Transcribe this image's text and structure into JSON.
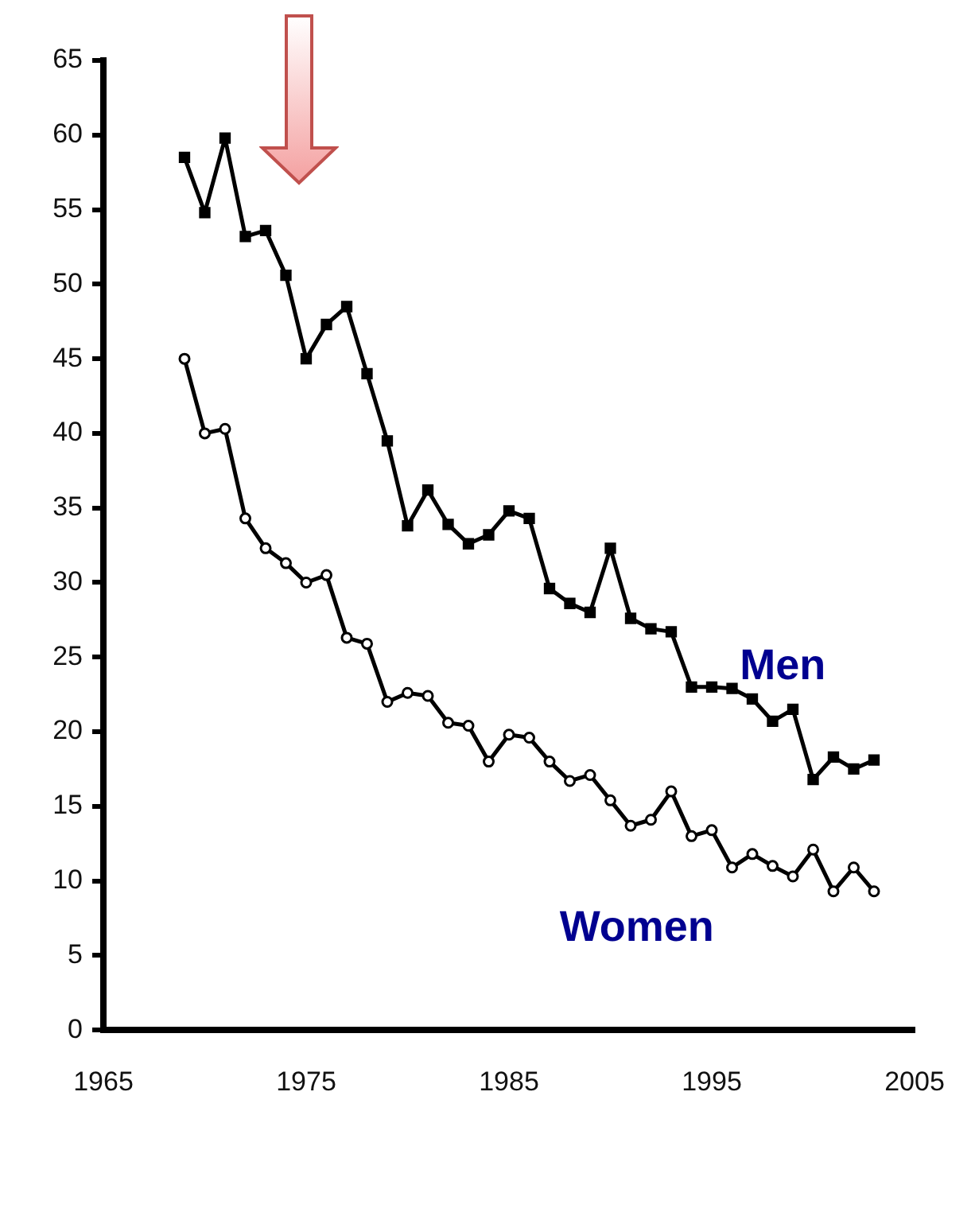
{
  "chart_data": {
    "type": "line",
    "x": [
      1969,
      1970,
      1971,
      1972,
      1973,
      1974,
      1975,
      1976,
      1977,
      1978,
      1979,
      1980,
      1981,
      1982,
      1983,
      1984,
      1985,
      1986,
      1987,
      1988,
      1989,
      1990,
      1991,
      1992,
      1993,
      1994,
      1995,
      1996,
      1997,
      1998,
      1999,
      2000,
      2001,
      2002,
      2003
    ],
    "series": [
      {
        "name": "Men",
        "color": "#000000",
        "marker": "square",
        "values": [
          58.5,
          54.8,
          59.8,
          53.2,
          53.6,
          50.6,
          45.0,
          47.3,
          48.5,
          44.0,
          39.5,
          33.8,
          36.2,
          33.9,
          32.6,
          33.2,
          34.8,
          34.3,
          29.6,
          28.6,
          28.0,
          32.3,
          27.6,
          26.9,
          26.7,
          23.0,
          23.0,
          22.9,
          22.2,
          20.7,
          21.5,
          16.8,
          18.3,
          17.5,
          18.1
        ]
      },
      {
        "name": "Women",
        "color": "#000000",
        "marker": "circle",
        "values": [
          45.0,
          40.0,
          40.3,
          34.3,
          32.3,
          31.3,
          30.0,
          30.5,
          26.3,
          25.9,
          22.0,
          22.6,
          22.4,
          20.6,
          20.4,
          18.0,
          19.8,
          19.6,
          18.0,
          16.7,
          17.1,
          15.4,
          13.7,
          14.1,
          16.0,
          13.0,
          13.4,
          10.9,
          11.8,
          11.0,
          10.3,
          12.1,
          9.3,
          10.9,
          9.3
        ]
      }
    ],
    "xlim": [
      1965,
      2005
    ],
    "xticks": [
      1965,
      1975,
      1985,
      1995,
      2005
    ],
    "ylim": [
      0,
      65
    ],
    "yticks": [
      0,
      5,
      10,
      15,
      20,
      25,
      30,
      35,
      40,
      45,
      50,
      55,
      60,
      65
    ],
    "grid": false,
    "legend": false,
    "line_style": "solid"
  }
}
